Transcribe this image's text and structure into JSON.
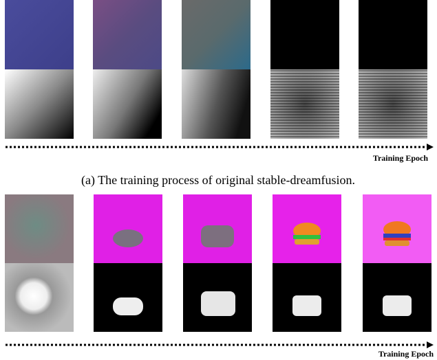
{
  "panels": [
    {
      "axis_label": "Training Epoch",
      "caption": "(a) The training process of original stable-dreamfusion."
    },
    {
      "axis_label": "Training Epoch"
    }
  ]
}
